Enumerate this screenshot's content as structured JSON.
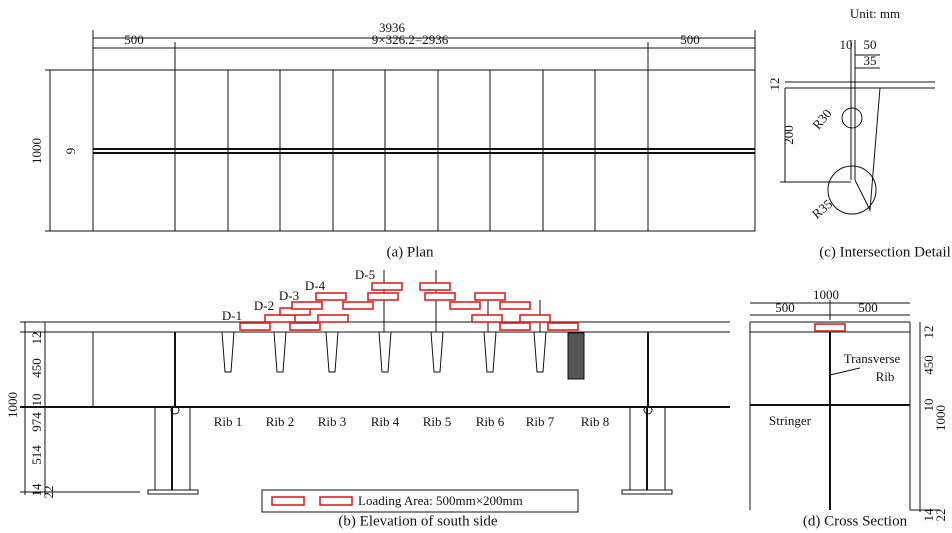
{
  "plan": {
    "caption": "(a) Plan",
    "total": 3936,
    "left_end": 500,
    "middle": "9×326.2=2936",
    "right_end": 500,
    "width": 1000,
    "gap": 9
  },
  "detail": {
    "caption": "(c) Intersection Detail",
    "unit": "Unit: mm",
    "d1": 10,
    "d2": 50,
    "d3": 35,
    "d4": 12,
    "r1": "R30",
    "d5": 200,
    "r2": "R35"
  },
  "elevation": {
    "caption": "(b) Elevation of south side",
    "loads": [
      "D-1",
      "D-2",
      "D-3",
      "D-4",
      "D-5"
    ],
    "ribs": [
      "Rib 1",
      "Rib 2",
      "Rib 3",
      "Rib 4",
      "Rib 5",
      "Rib 6",
      "Rib 7",
      "Rib 8"
    ],
    "dims": {
      "deck": 12,
      "rib": 450,
      "flange": 10,
      "web": 974,
      "height": 1000,
      "lower": 514,
      "base1": 14,
      "base2": 22
    },
    "legend": "Loading Area: 500mm×200mm"
  },
  "section": {
    "caption": "(d) Cross Section",
    "width": 1000,
    "left": 500,
    "right": 500,
    "transverse": [
      "Transverse",
      "Rib"
    ],
    "stringer": "Stringer",
    "dims": {
      "deck": 12,
      "rib": 450,
      "flange": 10,
      "height": 1000,
      "base1": 14,
      "base2": 22
    }
  }
}
